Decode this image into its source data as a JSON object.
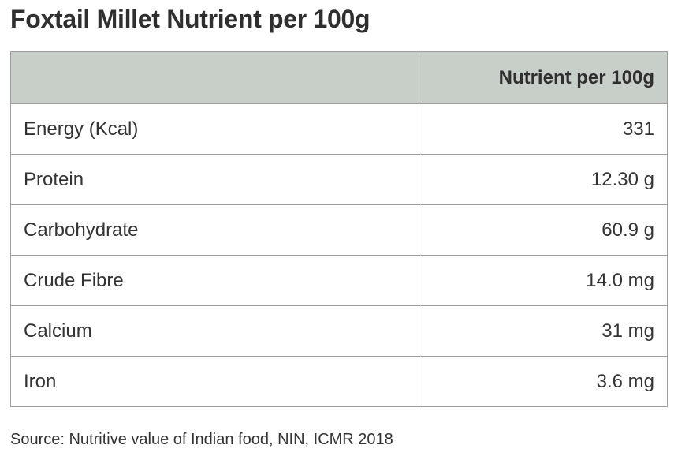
{
  "title": "Foxtail Millet Nutrient per 100g",
  "table": {
    "header": {
      "col1": "",
      "col2": "Nutrient per 100g"
    },
    "rows": [
      {
        "name": "Energy (Kcal)",
        "value": "331"
      },
      {
        "name": "Protein",
        "value": "12.30 g"
      },
      {
        "name": "Carbohydrate",
        "value": "60.9 g"
      },
      {
        "name": "Crude Fibre",
        "value": "14.0 mg"
      },
      {
        "name": "Calcium",
        "value": "31 mg"
      },
      {
        "name": "Iron",
        "value": "3.6 mg"
      }
    ]
  },
  "source": "Source: Nutritive value of Indian food, NIN, ICMR 2018",
  "colors": {
    "header_bg": "#c8cec8",
    "border": "#9e9e9e",
    "text": "#333333"
  }
}
